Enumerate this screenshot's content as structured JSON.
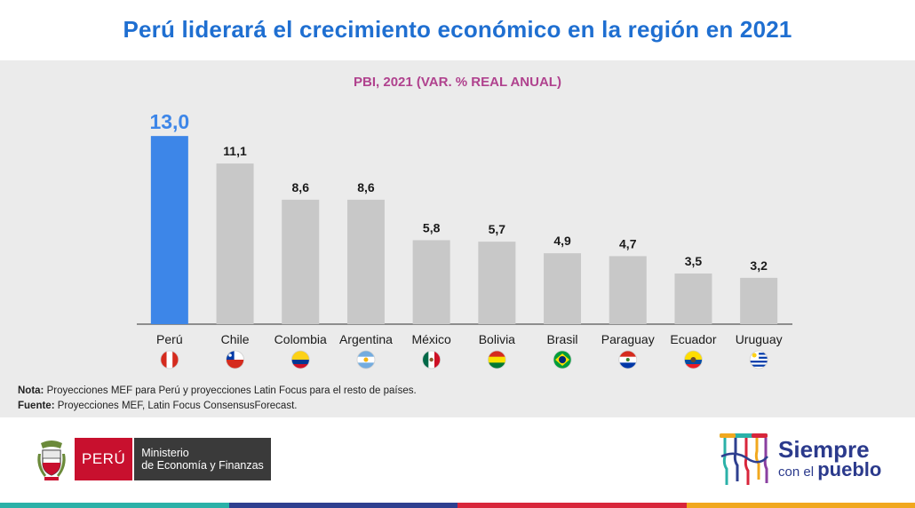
{
  "header": {
    "title": "Perú liderará el crecimiento económico en la región en 2021"
  },
  "chart_data": {
    "type": "bar",
    "title": "PBI, 2021 (VAR. % REAL ANUAL)",
    "xlabel": "",
    "ylabel": "",
    "ylim": [
      0,
      13.5
    ],
    "grid": false,
    "categories": [
      "Perú",
      "Chile",
      "Colombia",
      "Argentina",
      "México",
      "Bolivia",
      "Brasil",
      "Paraguay",
      "Ecuador",
      "Uruguay"
    ],
    "values": [
      13.0,
      11.1,
      8.6,
      8.6,
      5.8,
      5.7,
      4.9,
      4.7,
      3.5,
      3.2
    ],
    "value_labels": [
      "13,0",
      "11,1",
      "8,6",
      "8,6",
      "5,8",
      "5,7",
      "4,9",
      "4,7",
      "3,5",
      "3,2"
    ],
    "highlight_index": 0,
    "colors": {
      "highlight": "#3d86e8",
      "default": "#c8c8c8",
      "axis": "#555555",
      "label": "#1a1a1a",
      "highlight_label": "#3d86e8"
    }
  },
  "flags": [
    "peru-flag-icon",
    "chile-flag-icon",
    "colombia-flag-icon",
    "argentina-flag-icon",
    "mexico-flag-icon",
    "bolivia-flag-icon",
    "brazil-flag-icon",
    "paraguay-flag-icon",
    "ecuador-flag-icon",
    "uruguay-flag-icon"
  ],
  "notes": {
    "nota_label": "Nota:",
    "nota_text": " Proyecciones MEF para Perú y proyecciones Latin Focus para el resto de países.",
    "fuente_label": "Fuente:",
    "fuente_text": " Proyecciones MEF, Latin Focus ConsensusForecast."
  },
  "footer": {
    "peru_label": "PERÚ",
    "ministry_line1": "Ministerio",
    "ministry_line2": "de Economía y Finanzas",
    "slogan_big": "Siempre",
    "slogan_small": "con el",
    "slogan_bold": "pueblo"
  },
  "stripe_colors": [
    "#2bb1a8",
    "#2e3f8f",
    "#d8263b",
    "#f1a81f"
  ]
}
